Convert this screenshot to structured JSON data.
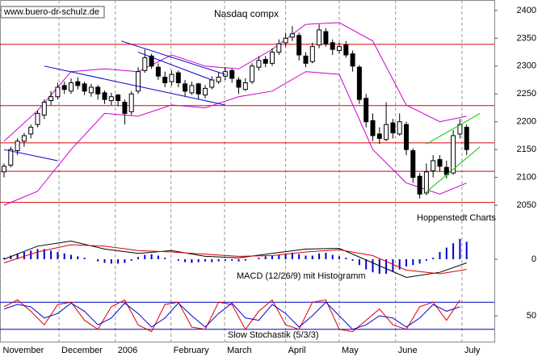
{
  "chart_data": [
    {
      "type": "candlestick",
      "title": "Nasdaq compx",
      "source": "www.buero-dr-schulz.de",
      "credit": "Hoppenstedt Charts",
      "ylim": [
        2040,
        2410
      ],
      "yticks": [
        2050,
        2100,
        2150,
        2200,
        2250,
        2300,
        2350,
        2400
      ],
      "xticks": [
        {
          "value": -0.6,
          "label": "November"
        },
        {
          "value": 8.2,
          "label": "December"
        },
        {
          "value": 16.6,
          "label": "2006"
        },
        {
          "value": 24.9,
          "label": "February"
        },
        {
          "value": 32.9,
          "label": "March"
        },
        {
          "value": 42,
          "label": "April"
        },
        {
          "value": 50,
          "label": "May"
        },
        {
          "value": 58.4,
          "label": "June"
        },
        {
          "value": 68.3,
          "label": "July"
        }
      ],
      "grid": true,
      "ohlc": [
        [
          2110,
          2125,
          2100,
          2120
        ],
        [
          2122,
          2155,
          2118,
          2150
        ],
        [
          2148,
          2170,
          2140,
          2165
        ],
        [
          2165,
          2180,
          2155,
          2175
        ],
        [
          2178,
          2195,
          2170,
          2190
        ],
        [
          2195,
          2220,
          2190,
          2215
        ],
        [
          2212,
          2240,
          2205,
          2235
        ],
        [
          2238,
          2255,
          2230,
          2245
        ],
        [
          2245,
          2270,
          2240,
          2262
        ],
        [
          2265,
          2272,
          2250,
          2258
        ],
        [
          2255,
          2278,
          2250,
          2270
        ],
        [
          2272,
          2280,
          2258,
          2265
        ],
        [
          2268,
          2272,
          2248,
          2255
        ],
        [
          2252,
          2268,
          2245,
          2262
        ],
        [
          2262,
          2266,
          2240,
          2250
        ],
        [
          2252,
          2256,
          2232,
          2240
        ],
        [
          2238,
          2252,
          2230,
          2245
        ],
        [
          2248,
          2250,
          2228,
          2238
        ],
        [
          2235,
          2240,
          2195,
          2215
        ],
        [
          2218,
          2255,
          2212,
          2250
        ],
        [
          2255,
          2298,
          2250,
          2290
        ],
        [
          2292,
          2330,
          2288,
          2315
        ],
        [
          2318,
          2322,
          2295,
          2300
        ],
        [
          2298,
          2305,
          2275,
          2282
        ],
        [
          2280,
          2290,
          2262,
          2270
        ],
        [
          2272,
          2292,
          2265,
          2285
        ],
        [
          2288,
          2292,
          2262,
          2270
        ],
        [
          2268,
          2275,
          2245,
          2255
        ],
        [
          2252,
          2272,
          2248,
          2265
        ],
        [
          2268,
          2270,
          2240,
          2250
        ],
        [
          2248,
          2266,
          2242,
          2260
        ],
        [
          2262,
          2282,
          2258,
          2275
        ],
        [
          2272,
          2288,
          2268,
          2280
        ],
        [
          2282,
          2298,
          2275,
          2290
        ],
        [
          2292,
          2295,
          2270,
          2278
        ],
        [
          2275,
          2280,
          2250,
          2262
        ],
        [
          2258,
          2278,
          2255,
          2270
        ],
        [
          2272,
          2305,
          2268,
          2300
        ],
        [
          2298,
          2318,
          2292,
          2310
        ],
        [
          2312,
          2318,
          2298,
          2305
        ],
        [
          2305,
          2332,
          2300,
          2325
        ],
        [
          2325,
          2348,
          2320,
          2340
        ],
        [
          2342,
          2360,
          2335,
          2350
        ],
        [
          2352,
          2372,
          2345,
          2358
        ],
        [
          2355,
          2360,
          2310,
          2320
        ],
        [
          2318,
          2325,
          2298,
          2305
        ],
        [
          2308,
          2342,
          2305,
          2335
        ],
        [
          2338,
          2375,
          2332,
          2365
        ],
        [
          2362,
          2368,
          2335,
          2340
        ],
        [
          2342,
          2348,
          2320,
          2330
        ],
        [
          2328,
          2342,
          2322,
          2335
        ],
        [
          2338,
          2345,
          2315,
          2320
        ],
        [
          2322,
          2328,
          2290,
          2300
        ],
        [
          2298,
          2302,
          2232,
          2240
        ],
        [
          2242,
          2250,
          2190,
          2200
        ],
        [
          2202,
          2215,
          2165,
          2175
        ],
        [
          2178,
          2190,
          2160,
          2170
        ],
        [
          2168,
          2235,
          2165,
          2195
        ],
        [
          2198,
          2205,
          2170,
          2180
        ],
        [
          2178,
          2215,
          2175,
          2200
        ],
        [
          2195,
          2200,
          2140,
          2150
        ],
        [
          2148,
          2152,
          2090,
          2100
        ],
        [
          2102,
          2108,
          2062,
          2070
        ],
        [
          2072,
          2125,
          2068,
          2110
        ],
        [
          2112,
          2140,
          2100,
          2130
        ],
        [
          2132,
          2140,
          2110,
          2120
        ],
        [
          2118,
          2130,
          2098,
          2105
        ],
        [
          2108,
          2185,
          2105,
          2175
        ],
        [
          2178,
          2205,
          2170,
          2195
        ],
        [
          2190,
          2195,
          2140,
          2150
        ]
      ],
      "bands": {
        "color": "#cc00cc",
        "x": [
          0,
          5,
          10,
          15,
          20,
          25,
          30,
          35,
          40,
          45,
          50,
          55,
          60,
          65,
          69
        ],
        "upper": [
          2165,
          2220,
          2290,
          2295,
          2290,
          2320,
          2300,
          2295,
          2330,
          2375,
          2378,
          2345,
          2230,
          2200,
          2210
        ],
        "lower": [
          2050,
          2075,
          2150,
          2215,
          2210,
          2230,
          2225,
          2245,
          2255,
          2290,
          2285,
          2150,
          2090,
          2070,
          2090
        ]
      },
      "levels": {
        "color": "#dd0000",
        "values": [
          2339,
          2229,
          2162,
          2111,
          2055
        ]
      },
      "trendlines": [
        {
          "color": "#0000cc",
          "x": [
            0,
            8
          ],
          "y": [
            2150,
            2130
          ]
        },
        {
          "color": "#0000cc",
          "x": [
            6,
            33
          ],
          "y": [
            2300,
            2230
          ]
        },
        {
          "color": "#0000cc",
          "x": [
            17.5,
            33
          ],
          "y": [
            2345,
            2285
          ]
        },
        {
          "color": "#0000cc",
          "x": [
            20,
            31
          ],
          "y": [
            2325,
            2275
          ]
        },
        {
          "color": "#00cc00",
          "x": [
            62.6,
            71
          ],
          "y": [
            2070,
            2155
          ]
        },
        {
          "color": "#00cc00",
          "x": [
            63,
            71
          ],
          "y": [
            2160,
            2215
          ]
        }
      ]
    },
    {
      "type": "macd",
      "title": "MACD (12/26/9) mit Histogramm",
      "ylim": [
        -40,
        40
      ],
      "yticks": [
        0
      ],
      "x": [
        0,
        5,
        10,
        15,
        20,
        25,
        30,
        35,
        40,
        45,
        50,
        55,
        60,
        65,
        69
      ],
      "series": [
        {
          "color": "#000000",
          "values": [
            0,
            18,
            25,
            14,
            8,
            12,
            4,
            2,
            8,
            14,
            15,
            -5,
            -25,
            -18,
            -5
          ]
        },
        {
          "color": "#dd0000",
          "values": [
            -5,
            10,
            20,
            18,
            12,
            10,
            7,
            4,
            5,
            10,
            13,
            5,
            -15,
            -20,
            -14
          ]
        }
      ],
      "histogram": {
        "color": "#0000cc",
        "values": [
          2,
          5,
          8,
          10,
          12,
          14,
          14,
          12,
          10,
          8,
          6,
          4,
          2,
          0,
          -3,
          -5,
          -6,
          -6,
          -5,
          -2,
          3,
          6,
          7,
          5,
          2,
          0,
          -2,
          -4,
          -5,
          -4,
          -3,
          -4,
          -3,
          -2,
          -2,
          -3,
          -2,
          0,
          2,
          4,
          5,
          6,
          8,
          9,
          7,
          5,
          5,
          8,
          9,
          6,
          4,
          2,
          -2,
          -8,
          -14,
          -18,
          -20,
          -20,
          -17,
          -14,
          -10,
          -8,
          -6,
          -2,
          2,
          10,
          16,
          22,
          28,
          24
        ]
      }
    },
    {
      "type": "line",
      "title": "Slow Stochastik (5/3/3)",
      "ylim": [
        0,
        100
      ],
      "yticks": [
        50
      ],
      "levels": {
        "color": "#0000cc",
        "values": [
          20,
          80
        ]
      },
      "x": [
        0,
        2,
        4,
        6,
        8,
        10,
        12,
        14,
        16,
        18,
        20,
        22,
        24,
        26,
        28,
        30,
        32,
        34,
        36,
        38,
        40,
        42,
        44,
        46,
        48,
        50,
        52,
        54,
        56,
        58,
        60,
        62,
        64,
        66,
        68
      ],
      "series": [
        {
          "color": "#dd0000",
          "values": [
            70,
            85,
            60,
            30,
            75,
            80,
            40,
            20,
            70,
            85,
            30,
            15,
            75,
            80,
            25,
            20,
            80,
            75,
            20,
            60,
            85,
            30,
            20,
            80,
            85,
            20,
            15,
            40,
            65,
            30,
            20,
            70,
            80,
            40,
            85
          ]
        },
        {
          "color": "#0000cc",
          "values": [
            65,
            75,
            70,
            45,
            55,
            78,
            60,
            30,
            45,
            78,
            55,
            25,
            45,
            78,
            50,
            25,
            55,
            78,
            45,
            40,
            75,
            55,
            25,
            50,
            80,
            50,
            20,
            30,
            50,
            45,
            25,
            45,
            75,
            60,
            70
          ]
        }
      ]
    }
  ]
}
